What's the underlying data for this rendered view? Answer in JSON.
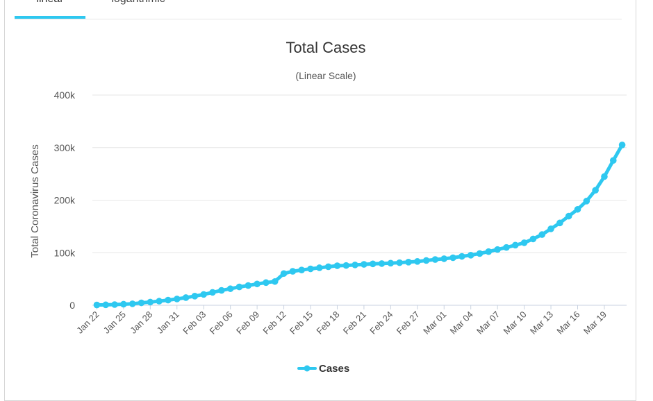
{
  "tabs": [
    {
      "label": "linear",
      "active": true
    },
    {
      "label": "logarithmic",
      "active": false
    }
  ],
  "chart_data": {
    "type": "line",
    "title": "Total Cases",
    "subtitle": "(Linear Scale)",
    "ylabel": "Total Coronavirus Cases",
    "xlabel": "",
    "ylim": [
      0,
      400000
    ],
    "yticks": [
      0,
      100000,
      200000,
      300000,
      400000
    ],
    "ytick_labels": [
      "0",
      "100k",
      "200k",
      "300k",
      "400k"
    ],
    "xtick_labels": [
      "Jan 22",
      "Jan 25",
      "Jan 28",
      "Jan 31",
      "Feb 03",
      "Feb 06",
      "Feb 09",
      "Feb 12",
      "Feb 15",
      "Feb 18",
      "Feb 21",
      "Feb 24",
      "Feb 27",
      "Mar 01",
      "Mar 04",
      "Mar 07",
      "Mar 10",
      "Mar 13",
      "Mar 16",
      "Mar 19"
    ],
    "xtick_every": 3,
    "legend": "bottom",
    "series": [
      {
        "name": "Cases",
        "color": "#2ec8f0",
        "categories": [
          "Jan 22",
          "Jan 23",
          "Jan 24",
          "Jan 25",
          "Jan 26",
          "Jan 27",
          "Jan 28",
          "Jan 29",
          "Jan 30",
          "Jan 31",
          "Feb 01",
          "Feb 02",
          "Feb 03",
          "Feb 04",
          "Feb 05",
          "Feb 06",
          "Feb 07",
          "Feb 08",
          "Feb 09",
          "Feb 10",
          "Feb 11",
          "Feb 12",
          "Feb 13",
          "Feb 14",
          "Feb 15",
          "Feb 16",
          "Feb 17",
          "Feb 18",
          "Feb 19",
          "Feb 20",
          "Feb 21",
          "Feb 22",
          "Feb 23",
          "Feb 24",
          "Feb 25",
          "Feb 26",
          "Feb 27",
          "Feb 28",
          "Feb 29",
          "Mar 01",
          "Mar 02",
          "Mar 03",
          "Mar 04",
          "Mar 05",
          "Mar 06",
          "Mar 07",
          "Mar 08",
          "Mar 09",
          "Mar 10",
          "Mar 11",
          "Mar 12",
          "Mar 13",
          "Mar 14",
          "Mar 15",
          "Mar 16",
          "Mar 17",
          "Mar 18",
          "Mar 19",
          "Mar 20",
          "Mar 21"
        ],
        "values": [
          580,
          845,
          1317,
          2015,
          2800,
          4581,
          6058,
          7813,
          9823,
          11950,
          14553,
          17391,
          20630,
          24554,
          28276,
          31481,
          34886,
          37558,
          40554,
          43103,
          45171,
          60374,
          64617,
          67100,
          69264,
          71344,
          73327,
          75191,
          75723,
          76719,
          77804,
          78812,
          79339,
          80132,
          80995,
          82101,
          83365,
          85203,
          87024,
          88585,
          90443,
          93016,
          95314,
          98425,
          102050,
          106099,
          109991,
          114381,
          118948,
          126214,
          134509,
          145483,
          156653,
          169593,
          182490,
          198234,
          218822,
          244933,
          275550,
          305036
        ]
      }
    ]
  }
}
